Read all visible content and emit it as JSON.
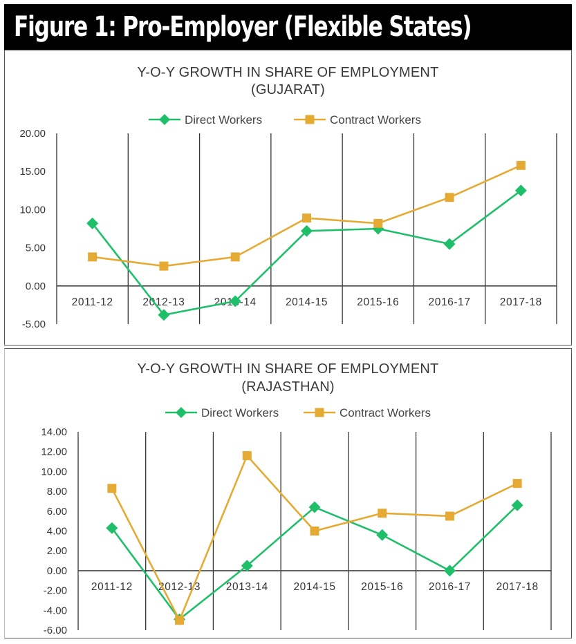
{
  "figure_title": "Figure 1: Pro-Employer (Flexible States)",
  "colors": {
    "direct": "#1fbf6a",
    "contract": "#e5aa33",
    "header_bg": "#000000"
  },
  "chart_data": [
    {
      "type": "line",
      "title": "Y-O-Y GROWTH IN SHARE OF EMPLOYMENT",
      "subtitle": "(GUJARAT)",
      "categories": [
        "2011-12",
        "2012-13",
        "2013-14",
        "2014-15",
        "2015-16",
        "2016-17",
        "2017-18"
      ],
      "series": [
        {
          "name": "Direct Workers",
          "marker": "diamond",
          "values": [
            8.2,
            -3.8,
            -2.0,
            7.2,
            7.5,
            5.5,
            12.5
          ]
        },
        {
          "name": "Contract Workers",
          "marker": "square",
          "values": [
            3.8,
            2.6,
            3.8,
            8.9,
            8.2,
            11.6,
            15.8
          ]
        }
      ],
      "ylim": [
        -5,
        20
      ],
      "yticks": [
        "-5.00",
        "0.00",
        "5.00",
        "10.00",
        "15.00",
        "20.00"
      ],
      "legend": "top",
      "grid": "vertical"
    },
    {
      "type": "line",
      "title": "Y-O-Y GROWTH IN SHARE OF EMPLOYMENT",
      "subtitle": "(RAJASTHAN)",
      "categories": [
        "2011-12",
        "2012-13",
        "2013-14",
        "2014-15",
        "2015-16",
        "2016-17",
        "2017-18"
      ],
      "series": [
        {
          "name": "Direct Workers",
          "marker": "diamond",
          "values": [
            4.3,
            -4.9,
            0.5,
            6.4,
            3.6,
            0.0,
            6.6
          ]
        },
        {
          "name": "Contract Workers",
          "marker": "square",
          "values": [
            8.3,
            -5.0,
            11.6,
            4.0,
            5.8,
            5.5,
            8.8
          ]
        }
      ],
      "ylim": [
        -6,
        14
      ],
      "yticks": [
        "-6.00",
        "-4.00",
        "-2.00",
        "0.00",
        "2.00",
        "4.00",
        "6.00",
        "8.00",
        "10.00",
        "12.00",
        "14.00"
      ],
      "legend": "top",
      "grid": "vertical"
    }
  ]
}
